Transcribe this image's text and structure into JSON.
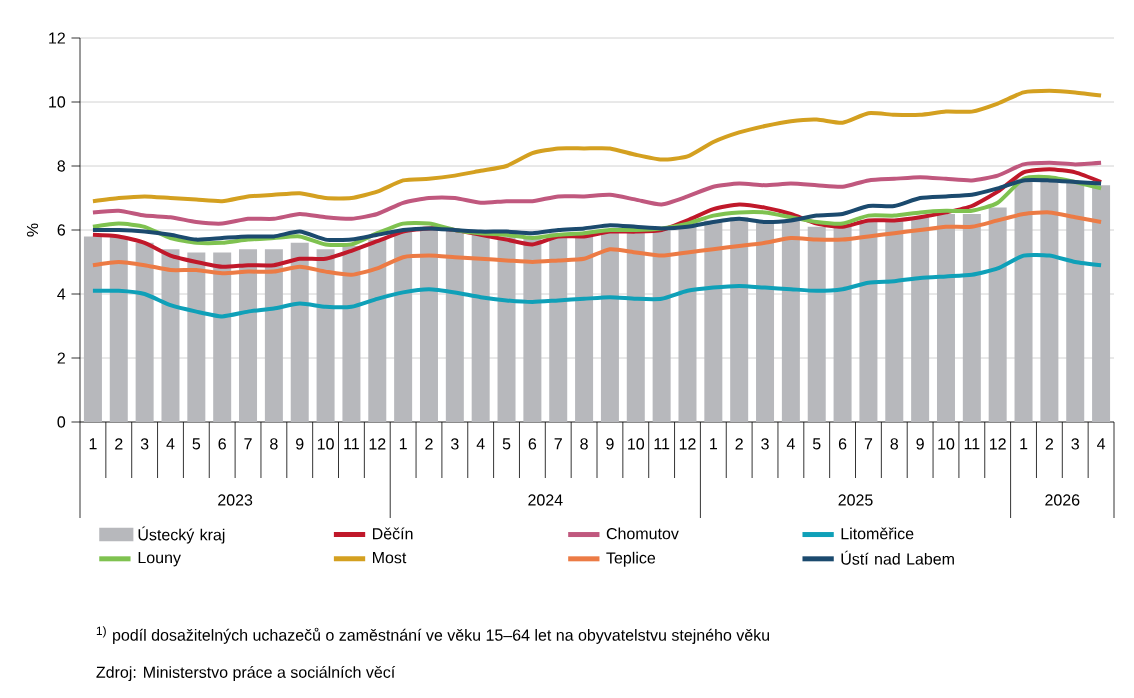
{
  "chart_data": {
    "type": "line",
    "ylabel": "%",
    "categories": [
      "1",
      "2",
      "3",
      "4",
      "5",
      "6",
      "7",
      "8",
      "9",
      "10",
      "11",
      "12",
      "1",
      "2",
      "3",
      "4",
      "5",
      "6",
      "7",
      "8",
      "9",
      "10",
      "11",
      "12",
      "1",
      "2",
      "3",
      "4",
      "5",
      "6",
      "7",
      "8",
      "9",
      "10",
      "11",
      "12",
      "1",
      "2",
      "3",
      "4"
    ],
    "series": [
      {
        "name": "Ústecký kraj",
        "type": "bar",
        "color": "#b7b8bc",
        "values": [
          5.8,
          5.8,
          5.6,
          5.4,
          5.3,
          5.3,
          5.4,
          5.4,
          5.6,
          5.4,
          5.5,
          5.7,
          6.0,
          6.1,
          6.0,
          5.9,
          5.8,
          5.8,
          5.9,
          5.9,
          6.0,
          6.0,
          6.0,
          6.1,
          6.3,
          6.4,
          6.3,
          6.3,
          6.1,
          6.1,
          6.3,
          6.3,
          6.4,
          6.5,
          6.5,
          6.7,
          7.6,
          7.6,
          7.5,
          7.4
        ]
      },
      {
        "name": "Děčín",
        "color": "#c0182a",
        "values": [
          5.85,
          5.8,
          5.6,
          5.2,
          5.0,
          4.85,
          4.9,
          4.9,
          5.1,
          5.1,
          5.35,
          5.65,
          5.95,
          6.05,
          6.0,
          5.85,
          5.7,
          5.55,
          5.8,
          5.8,
          5.95,
          5.95,
          6.0,
          6.3,
          6.65,
          6.8,
          6.7,
          6.5,
          6.2,
          6.1,
          6.3,
          6.3,
          6.4,
          6.55,
          6.75,
          7.2,
          7.8,
          7.9,
          7.8,
          7.5
        ]
      },
      {
        "name": "Chomutov",
        "color": "#c0587e",
        "values": [
          6.55,
          6.6,
          6.45,
          6.4,
          6.25,
          6.2,
          6.35,
          6.35,
          6.5,
          6.4,
          6.35,
          6.5,
          6.85,
          7.0,
          7.0,
          6.85,
          6.9,
          6.9,
          7.05,
          7.05,
          7.1,
          6.95,
          6.8,
          7.05,
          7.35,
          7.45,
          7.4,
          7.45,
          7.4,
          7.35,
          7.55,
          7.6,
          7.65,
          7.6,
          7.55,
          7.7,
          8.05,
          8.1,
          8.05,
          8.1
        ]
      },
      {
        "name": "Litoměřice",
        "color": "#0fa0b8",
        "values": [
          4.1,
          4.1,
          4.0,
          3.65,
          3.45,
          3.3,
          3.45,
          3.55,
          3.7,
          3.6,
          3.6,
          3.85,
          4.05,
          4.15,
          4.05,
          3.9,
          3.8,
          3.75,
          3.8,
          3.85,
          3.9,
          3.85,
          3.85,
          4.1,
          4.2,
          4.25,
          4.2,
          4.15,
          4.1,
          4.15,
          4.35,
          4.4,
          4.5,
          4.55,
          4.6,
          4.8,
          5.2,
          5.2,
          5.0,
          4.9
        ]
      },
      {
        "name": "Louny",
        "color": "#7fc250",
        "values": [
          6.1,
          6.2,
          6.1,
          5.75,
          5.6,
          5.6,
          5.7,
          5.75,
          5.8,
          5.55,
          5.55,
          5.9,
          6.2,
          6.2,
          6.0,
          5.9,
          5.85,
          5.75,
          5.85,
          5.9,
          6.0,
          6.0,
          6.05,
          6.2,
          6.45,
          6.55,
          6.55,
          6.4,
          6.25,
          6.2,
          6.45,
          6.45,
          6.55,
          6.6,
          6.6,
          6.85,
          7.6,
          7.65,
          7.5,
          7.3
        ]
      },
      {
        "name": "Most",
        "color": "#d4a020",
        "values": [
          6.9,
          7.0,
          7.05,
          7.0,
          6.95,
          6.9,
          7.05,
          7.1,
          7.15,
          7.0,
          7.0,
          7.2,
          7.55,
          7.6,
          7.7,
          7.85,
          8.0,
          8.4,
          8.55,
          8.55,
          8.55,
          8.35,
          8.2,
          8.3,
          8.75,
          9.05,
          9.25,
          9.4,
          9.45,
          9.35,
          9.65,
          9.6,
          9.6,
          9.7,
          9.7,
          9.95,
          10.3,
          10.35,
          10.3,
          10.2
        ]
      },
      {
        "name": "Teplice",
        "color": "#ec7b45",
        "values": [
          4.9,
          5.0,
          4.9,
          4.75,
          4.75,
          4.65,
          4.7,
          4.7,
          4.85,
          4.7,
          4.6,
          4.8,
          5.15,
          5.2,
          5.15,
          5.1,
          5.05,
          5.0,
          5.05,
          5.1,
          5.4,
          5.3,
          5.2,
          5.3,
          5.4,
          5.5,
          5.6,
          5.75,
          5.7,
          5.7,
          5.8,
          5.9,
          6.0,
          6.1,
          6.1,
          6.3,
          6.5,
          6.55,
          6.4,
          6.25
        ]
      },
      {
        "name": "Ústí nad Labem",
        "color": "#1b4a6e",
        "values": [
          6.0,
          6.0,
          5.95,
          5.85,
          5.7,
          5.75,
          5.8,
          5.8,
          5.95,
          5.7,
          5.7,
          5.85,
          6.0,
          6.05,
          6.0,
          5.95,
          5.95,
          5.9,
          6.0,
          6.05,
          6.15,
          6.1,
          6.05,
          6.1,
          6.25,
          6.35,
          6.25,
          6.3,
          6.45,
          6.5,
          6.75,
          6.75,
          7.0,
          7.05,
          7.1,
          7.3,
          7.55,
          7.55,
          7.5,
          7.45
        ]
      }
    ],
    "ylim": [
      0,
      12
    ],
    "yticks": [
      0,
      2,
      4,
      6,
      8,
      10,
      12
    ],
    "grid": "y",
    "legend": "bottom",
    "marker": "none",
    "line_style": "solid",
    "annotations": [
      "2023",
      "2024",
      "2025",
      "2026",
      "$^{1)}$ podíl dosažitelných uchazečů o zaměstnání ve věku 15–64 let na obyvatelstvu stejného věku",
      "Zdroj: Ministerstvo práce a sociálních věcí"
    ]
  }
}
